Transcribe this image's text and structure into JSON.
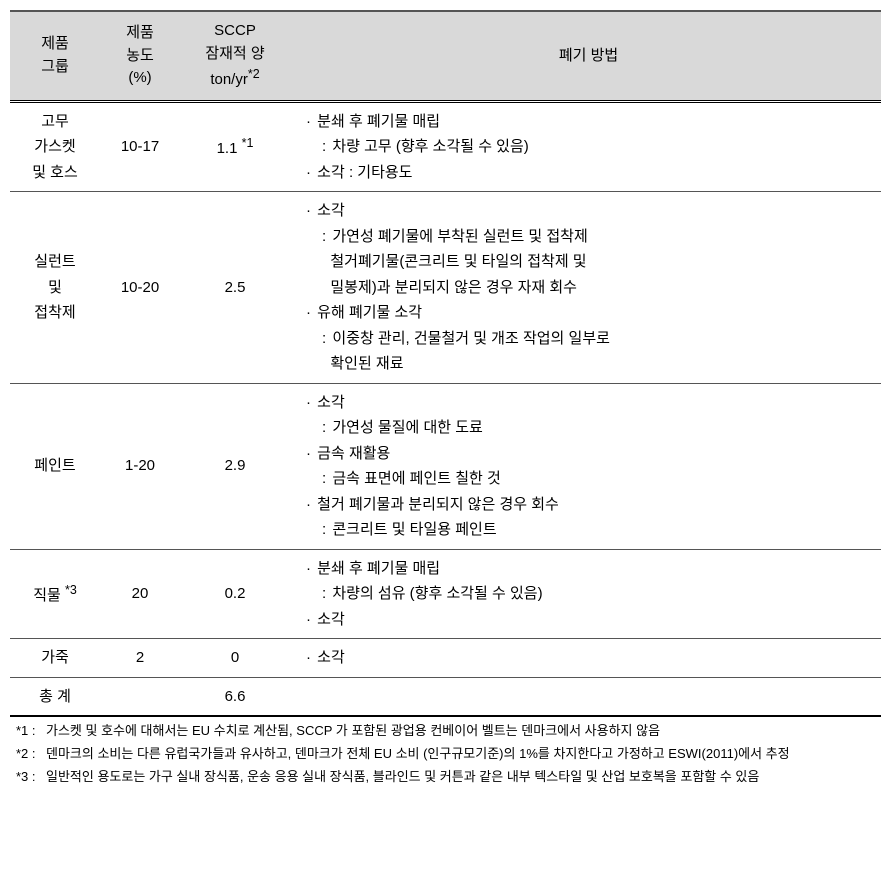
{
  "headers": {
    "group": "제품\n그룹",
    "conc": "제품\n농도\n(%)",
    "sccp_l1": "SCCP",
    "sccp_l2": "잠재적 양",
    "sccp_l3": "ton/yr",
    "sccp_sup": "*2",
    "disposal": "폐기 방법"
  },
  "rows": [
    {
      "group": "고무\n가스켓\n및 호스",
      "conc": "10-17",
      "sccp": "1.1 ",
      "sccp_sup": "*1",
      "disposal": [
        {
          "type": "item",
          "text": "분쇄 후 폐기물 매립"
        },
        {
          "type": "sub",
          "text": "차량 고무 (향후 소각될 수 있음)"
        },
        {
          "type": "item",
          "text": "소각  :  기타용도"
        }
      ]
    },
    {
      "group": "실런트\n및\n접착제",
      "conc": "10-20",
      "sccp": "2.5",
      "disposal": [
        {
          "type": "item",
          "text": "소각"
        },
        {
          "type": "sub",
          "text": "가연성 폐기물에 부착된 실런트 및 접착제"
        },
        {
          "type": "subplain",
          "text": "철거폐기물(콘크리트 및 타일의 접착제 및"
        },
        {
          "type": "subplain",
          "text": "밀봉제)과 분리되지 않은 경우 자재 회수"
        },
        {
          "type": "item",
          "text": "유해 폐기물 소각"
        },
        {
          "type": "sub",
          "text": "이중창 관리, 건물철거 및 개조 작업의 일부로"
        },
        {
          "type": "subplain",
          "text": "확인된 재료"
        }
      ]
    },
    {
      "group": "페인트",
      "conc": "1-20",
      "sccp": "2.9",
      "disposal": [
        {
          "type": "item",
          "text": "소각"
        },
        {
          "type": "sub",
          "text": "가연성 물질에 대한 도료"
        },
        {
          "type": "item",
          "text": "금속 재활용"
        },
        {
          "type": "sub",
          "text": "금속 표면에 페인트 칠한 것"
        },
        {
          "type": "item",
          "text": "철거 폐기물과 분리되지 않은 경우 회수"
        },
        {
          "type": "sub",
          "text": "콘크리트 및 타일용 페인트"
        }
      ]
    },
    {
      "group_pre": "직물 ",
      "group_sup": "*3",
      "conc": "20",
      "sccp": "0.2",
      "disposal": [
        {
          "type": "item",
          "text": "분쇄 후 폐기물 매립"
        },
        {
          "type": "sub",
          "text": "차량의 섬유 (향후 소각될 수 있음)"
        },
        {
          "type": "item",
          "text": "소각"
        }
      ]
    },
    {
      "group": "가죽",
      "conc": "2",
      "sccp": "0",
      "disposal": [
        {
          "type": "item",
          "text": "소각"
        }
      ]
    },
    {
      "group": "총 계",
      "conc": "",
      "sccp": "6.6",
      "disposal": []
    }
  ],
  "footnotes": [
    {
      "mark": "*1 :",
      "text": "가스켓 및 호수에 대해서는 EU 수치로 계산됨, SCCP 가 포함된 광업용 컨베이어 벨트는 덴마크에서 사용하지 않음"
    },
    {
      "mark": "*2 :",
      "text": "덴마크의 소비는 다른 유럽국가들과 유사하고, 덴마크가 전체 EU 소비 (인구규모기준)의 1%를 차지한다고 가정하고 ESWI(2011)에서 추정"
    },
    {
      "mark": "*3 :",
      "text": "일반적인 용도로는 가구 실내 장식품, 운송 응용 실내 장식품, 블라인드 및 커튼과 같은 내부 텍스타일 및 산업 보호복을 포함할 수 있음"
    }
  ]
}
